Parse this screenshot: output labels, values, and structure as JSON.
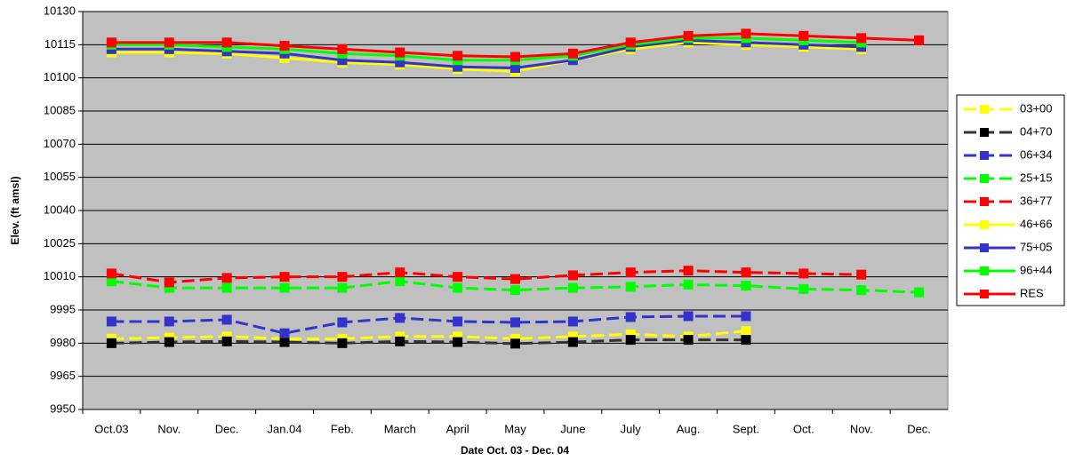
{
  "chart_data": {
    "type": "line",
    "x_label": "Date Oct. 03 - Dec. 04",
    "y_label": "Elev. (ft amsl)",
    "categories": [
      "Oct.03",
      "Nov.",
      "Dec.",
      "Jan.04",
      "Feb.",
      "March",
      "April",
      "May",
      "June",
      "July",
      "Aug.",
      "Sept.",
      "Oct.",
      "Nov.",
      "Dec."
    ],
    "ylim": [
      9950,
      10130
    ],
    "yticks": [
      9950,
      9965,
      9980,
      9995,
      10010,
      10025,
      10040,
      10055,
      10070,
      10085,
      10100,
      10115,
      10130
    ],
    "grid": true,
    "legend": "right",
    "series": [
      {
        "name": "03+00",
        "color": "#ffff00",
        "style": "dashed",
        "values": [
          9982,
          9982.5,
          9983,
          9982,
          9982,
          9983,
          9983,
          9982,
          9983,
          9984,
          9983,
          9985.5,
          null,
          null,
          null
        ]
      },
      {
        "name": "04+70",
        "color": "#000000",
        "style": "dashed",
        "values": [
          9980,
          9980.5,
          9980.8,
          9980.5,
          9980,
          9980.8,
          9980.5,
          9979.8,
          9980.5,
          9981.5,
          9981.5,
          9981.5,
          null,
          null,
          null
        ]
      },
      {
        "name": "06+34",
        "color": "#3333cc",
        "style": "dashed",
        "values": [
          9989.8,
          9989.8,
          9990.6,
          9984.5,
          9989.4,
          9991.4,
          9989.8,
          9989.4,
          9989.8,
          9991.8,
          9992.2,
          9992.2,
          null,
          null,
          null
        ]
      },
      {
        "name": "25+15",
        "color": "#00ff00",
        "style": "dashed",
        "values": [
          10008,
          10005,
          10005,
          10005,
          10005,
          10008,
          10005,
          10004,
          10005,
          10005.5,
          10006.5,
          10006,
          10004.5,
          10004,
          10003
        ]
      },
      {
        "name": "36+77",
        "color": "#ff0000",
        "style": "dashed",
        "values": [
          10011.5,
          10007.5,
          10009.5,
          10010,
          10010,
          10012,
          10010,
          10009,
          10010.7,
          10012,
          10012.8,
          10012,
          10011.5,
          10011,
          null
        ]
      },
      {
        "name": "46+66",
        "color": "#ffff00",
        "style": "solid",
        "values": [
          10111.5,
          10111.5,
          10111,
          10109,
          10107,
          10106,
          10104,
          10103,
          10108,
          10113,
          10116,
          10115,
          10114,
          10113,
          null
        ]
      },
      {
        "name": "75+05",
        "color": "#3333cc",
        "style": "solid",
        "values": [
          10113,
          10113,
          10112,
          10111,
          10108,
          10107,
          10105,
          10104.5,
          10108,
          10114,
          10117,
          10116,
          10115,
          10114,
          null
        ]
      },
      {
        "name": "96+44",
        "color": "#00ff00",
        "style": "solid",
        "values": [
          10115,
          10115,
          10114,
          10113,
          10111,
          10110,
          10108,
          10108,
          10110,
          10115,
          10118,
          10118,
          10117,
          10116,
          null
        ]
      },
      {
        "name": "RES",
        "color": "#ff0000",
        "style": "solid",
        "values": [
          10116,
          10116,
          10116,
          10114.5,
          10113,
          10111.5,
          10110,
          10109.5,
          10111,
          10116,
          10119,
          10120,
          10119,
          10118,
          10117
        ]
      }
    ]
  }
}
